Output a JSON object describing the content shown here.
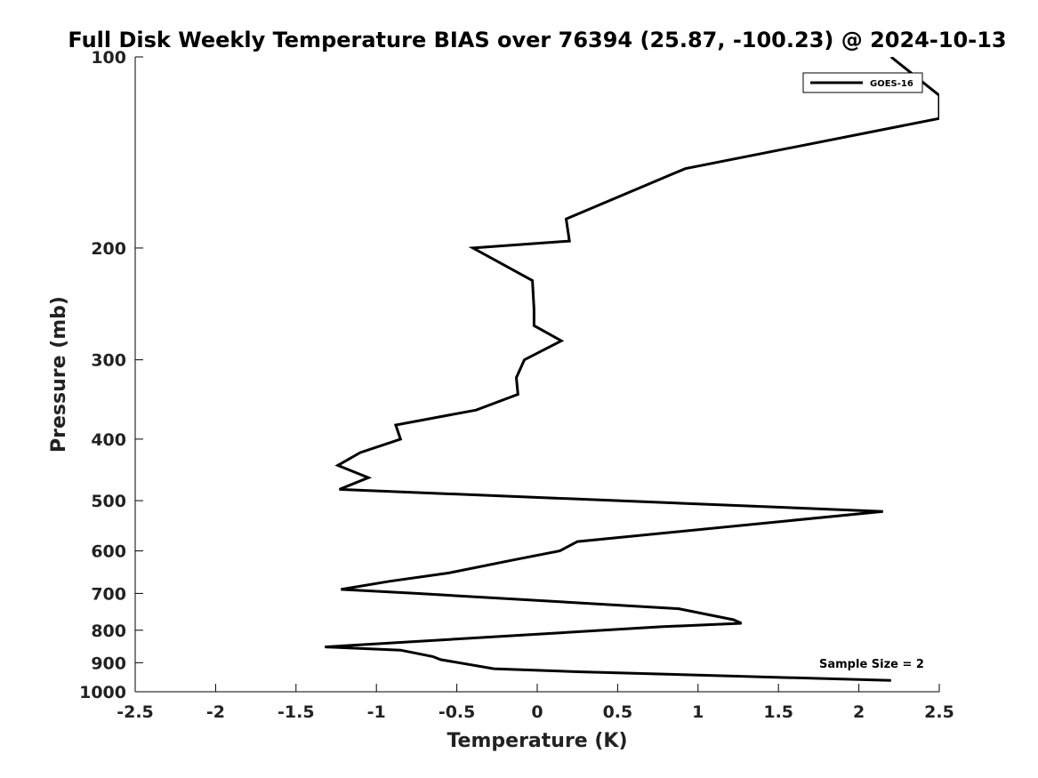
{
  "chart_data": {
    "type": "line",
    "title": "Full Disk Weekly Temperature BIAS over 76394 (25.87, -100.23) @ 2024-10-13",
    "xlabel": "Temperature (K)",
    "ylabel": "Pressure (mb)",
    "xlim": [
      -2.5,
      2.5
    ],
    "ylim": [
      100,
      1000
    ],
    "y_scale": "log",
    "y_reversed": true,
    "grid": false,
    "x_ticks": [
      -2.5,
      -2,
      -1.5,
      -1,
      -0.5,
      0,
      0.5,
      1,
      1.5,
      2,
      2.5
    ],
    "x_tick_labels": [
      "-2.5",
      "-2",
      "-1.5",
      "-1",
      "-0.5",
      "0",
      "0.5",
      "1",
      "1.5",
      "2",
      "2.5"
    ],
    "y_ticks": [
      100,
      200,
      300,
      400,
      500,
      600,
      700,
      800,
      900,
      1000
    ],
    "y_tick_labels": [
      "100",
      "200",
      "300",
      "400",
      "500",
      "600",
      "700",
      "800",
      "900",
      "1000"
    ],
    "legend_position": "top-right",
    "annotation": "Sample Size = 2",
    "line_color": "#000000",
    "series": [
      {
        "name": "GOES-16",
        "points": [
          [
            2.2,
            100
          ],
          [
            2.5,
            115
          ],
          [
            2.5,
            125
          ],
          [
            0.92,
            150
          ],
          [
            0.18,
            180
          ],
          [
            0.2,
            195
          ],
          [
            -0.4,
            200
          ],
          [
            -0.03,
            225
          ],
          [
            -0.02,
            250
          ],
          [
            -0.02,
            265
          ],
          [
            0.15,
            280
          ],
          [
            -0.08,
            300
          ],
          [
            -0.13,
            320
          ],
          [
            -0.12,
            340
          ],
          [
            -0.38,
            360
          ],
          [
            -0.88,
            380
          ],
          [
            -0.85,
            400
          ],
          [
            -1.1,
            420
          ],
          [
            -1.24,
            440
          ],
          [
            -1.05,
            460
          ],
          [
            -1.23,
            480
          ],
          [
            2.15,
            520
          ],
          [
            0.25,
            580
          ],
          [
            0.14,
            600
          ],
          [
            -0.15,
            620
          ],
          [
            -0.55,
            650
          ],
          [
            -0.92,
            670
          ],
          [
            -1.22,
            690
          ],
          [
            -0.75,
            700
          ],
          [
            0.88,
            740
          ],
          [
            1.22,
            770
          ],
          [
            1.27,
            780
          ],
          [
            0.77,
            790
          ],
          [
            -1.32,
            850
          ],
          [
            -0.85,
            860
          ],
          [
            -0.65,
            880
          ],
          [
            -0.6,
            890
          ],
          [
            -0.27,
            920
          ],
          [
            0.25,
            930
          ],
          [
            2.2,
            960
          ]
        ]
      }
    ]
  }
}
